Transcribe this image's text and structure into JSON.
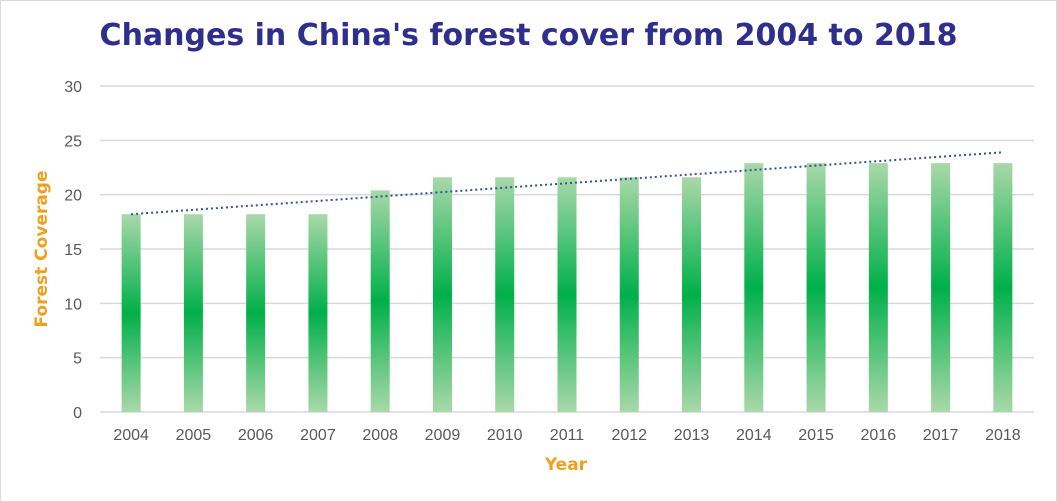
{
  "chart_data": {
    "type": "bar",
    "title": "Changes in China's forest cover from 2004 to 2018",
    "xlabel": "Year",
    "ylabel": "Forest Coverage",
    "ylim": [
      0,
      30
    ],
    "yticks": [
      0,
      5,
      10,
      15,
      20,
      25,
      30
    ],
    "grid": true,
    "categories": [
      "2004",
      "2005",
      "2006",
      "2007",
      "2008",
      "2009",
      "2010",
      "2011",
      "2012",
      "2013",
      "2014",
      "2015",
      "2016",
      "2017",
      "2018"
    ],
    "values": [
      18.2,
      18.2,
      18.2,
      18.2,
      20.4,
      21.6,
      21.6,
      21.6,
      21.6,
      21.6,
      22.9,
      22.9,
      22.9,
      22.9,
      22.9
    ],
    "trendline": {
      "type": "linear",
      "style": "dotted",
      "start": 18.2,
      "end": 23.9
    },
    "colors": {
      "bar_center": "#00b04a",
      "bar_edge": "#a9d8a9",
      "trend": "#2f5597",
      "grid": "#d9d9d9",
      "title": "#2e2e8c",
      "axis_title": "#f0a01e"
    }
  }
}
